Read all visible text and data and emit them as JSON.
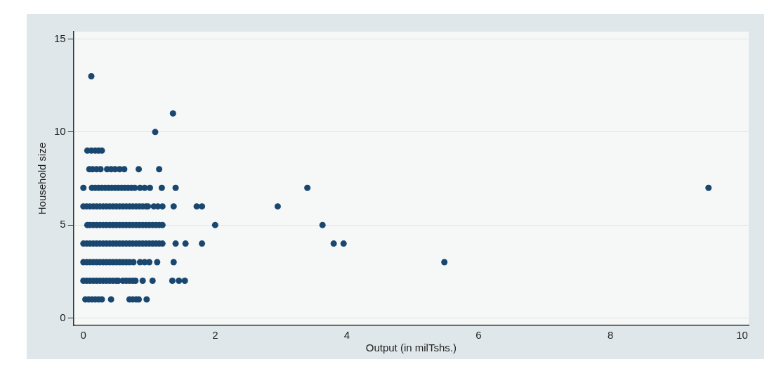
{
  "chart_data": {
    "type": "scatter",
    "xlabel": "Output (in milTshs.)",
    "ylabel": "Household size",
    "xlim": [
      -0.15,
      10.1
    ],
    "xticks": [
      0,
      2,
      4,
      6,
      8,
      10
    ],
    "ylim": [
      -0.4,
      15.4
    ],
    "yticks": [
      0,
      5,
      10,
      15
    ],
    "grid": "y",
    "marker": "circle",
    "legend": false,
    "series": [
      {
        "color": "#1a476f",
        "x": [
          0.03,
          0.08,
          0.13,
          0.18,
          0.23,
          0.28,
          0.42,
          0.7,
          0.75,
          0.8,
          0.84,
          0.96,
          0,
          0.05,
          0.1,
          0.15,
          0.2,
          0.25,
          0.3,
          0.35,
          0.4,
          0.45,
          0.5,
          0.53,
          0.6,
          0.65,
          0.7,
          0.75,
          0.79,
          0.9,
          1.05,
          1.35,
          1.45,
          1.54,
          0,
          0.05,
          0.1,
          0.15,
          0.2,
          0.25,
          0.3,
          0.35,
          0.4,
          0.45,
          0.5,
          0.55,
          0.6,
          0.65,
          0.7,
          0.76,
          0.86,
          0.93,
          1.0,
          1.12,
          1.37,
          5.48,
          0,
          0.05,
          0.1,
          0.15,
          0.2,
          0.25,
          0.3,
          0.35,
          0.4,
          0.45,
          0.5,
          0.55,
          0.6,
          0.65,
          0.7,
          0.75,
          0.8,
          0.85,
          0.9,
          0.95,
          1.0,
          1.05,
          1.1,
          1.15,
          1.2,
          1.4,
          1.55,
          1.8,
          3.8,
          3.95,
          0.06,
          0.1,
          0.15,
          0.2,
          0.25,
          0.3,
          0.35,
          0.4,
          0.45,
          0.5,
          0.55,
          0.6,
          0.65,
          0.7,
          0.75,
          0.8,
          0.85,
          0.9,
          0.95,
          1.0,
          1.05,
          1.1,
          1.15,
          1.2,
          2.0,
          3.63,
          0,
          0.05,
          0.1,
          0.15,
          0.2,
          0.25,
          0.3,
          0.35,
          0.4,
          0.45,
          0.5,
          0.55,
          0.6,
          0.65,
          0.7,
          0.75,
          0.8,
          0.85,
          0.9,
          0.95,
          0.98,
          1.07,
          1.13,
          1.2,
          1.37,
          1.72,
          1.8,
          2.95,
          0,
          0.13,
          0.18,
          0.23,
          0.28,
          0.33,
          0.38,
          0.43,
          0.48,
          0.53,
          0.58,
          0.63,
          0.68,
          0.73,
          0.78,
          0.86,
          0.93,
          1.01,
          1.19,
          1.4,
          3.4,
          9.49,
          0.09,
          0.14,
          0.2,
          0.26,
          0.36,
          0.42,
          0.48,
          0.55,
          0.62,
          0.84,
          1.15,
          0.06,
          0.12,
          0.18,
          0.23,
          0.28,
          1.09,
          1.36,
          0.12
        ],
        "values": [
          1,
          1,
          1,
          1,
          1,
          1,
          1,
          1,
          1,
          1,
          1,
          1,
          2,
          2,
          2,
          2,
          2,
          2,
          2,
          2,
          2,
          2,
          2,
          2,
          2,
          2,
          2,
          2,
          2,
          2,
          2,
          2,
          2,
          2,
          3,
          3,
          3,
          3,
          3,
          3,
          3,
          3,
          3,
          3,
          3,
          3,
          3,
          3,
          3,
          3,
          3,
          3,
          3,
          3,
          3,
          3,
          4,
          4,
          4,
          4,
          4,
          4,
          4,
          4,
          4,
          4,
          4,
          4,
          4,
          4,
          4,
          4,
          4,
          4,
          4,
          4,
          4,
          4,
          4,
          4,
          4,
          4,
          4,
          4,
          4,
          4,
          5,
          5,
          5,
          5,
          5,
          5,
          5,
          5,
          5,
          5,
          5,
          5,
          5,
          5,
          5,
          5,
          5,
          5,
          5,
          5,
          5,
          5,
          5,
          5,
          5,
          5,
          6,
          6,
          6,
          6,
          6,
          6,
          6,
          6,
          6,
          6,
          6,
          6,
          6,
          6,
          6,
          6,
          6,
          6,
          6,
          6,
          6,
          6,
          6,
          6,
          6,
          6,
          6,
          6,
          7,
          7,
          7,
          7,
          7,
          7,
          7,
          7,
          7,
          7,
          7,
          7,
          7,
          7,
          7,
          7,
          7,
          7,
          7,
          7,
          7,
          7,
          8,
          8,
          8,
          8,
          8,
          8,
          8,
          8,
          8,
          8,
          8,
          9,
          9,
          9,
          9,
          9,
          10,
          11,
          13
        ]
      }
    ]
  }
}
